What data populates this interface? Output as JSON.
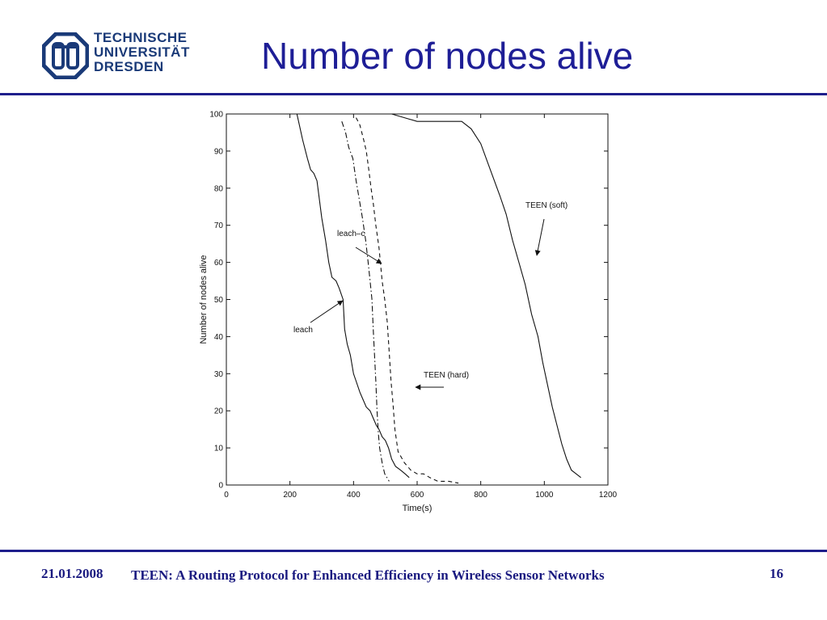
{
  "header": {
    "logo_lines": [
      "TECHNISCHE",
      "UNIVERSITÄT",
      "DRESDEN"
    ],
    "title": "Number of nodes alive"
  },
  "footer": {
    "date": "21.01.2008",
    "talk_title": "TEEN: A Routing Protocol for Enhanced Efficiency in Wireless Sensor Networks",
    "page_number": "16"
  },
  "colors": {
    "title": "#1e1e96",
    "rule": "#1e1e8c",
    "footer": "#1a1a80",
    "logo": "#1a3a78",
    "plot_ink": "#111111"
  },
  "chart_data": {
    "type": "line",
    "title": "",
    "xlabel": "Time(s)",
    "ylabel": "Number of nodes alive",
    "xlim": [
      0,
      1200
    ],
    "ylim": [
      0,
      100
    ],
    "xticks": [
      0,
      200,
      400,
      600,
      800,
      1000,
      1200
    ],
    "yticks": [
      0,
      10,
      20,
      30,
      40,
      50,
      60,
      70,
      80,
      90,
      100
    ],
    "grid": false,
    "legend": "none",
    "series": [
      {
        "name": "leach",
        "style": "solid",
        "points": [
          [
            222,
            100
          ],
          [
            240,
            93
          ],
          [
            255,
            88
          ],
          [
            265,
            85
          ],
          [
            275,
            84
          ],
          [
            285,
            82
          ],
          [
            300,
            72
          ],
          [
            312,
            66
          ],
          [
            322,
            60
          ],
          [
            332,
            56
          ],
          [
            345,
            55
          ],
          [
            355,
            53
          ],
          [
            367,
            50
          ],
          [
            372,
            42
          ],
          [
            380,
            38
          ],
          [
            390,
            35
          ],
          [
            400,
            30
          ],
          [
            408,
            28
          ],
          [
            420,
            25
          ],
          [
            430,
            23
          ],
          [
            440,
            21
          ],
          [
            452,
            20
          ],
          [
            462,
            18
          ],
          [
            472,
            16
          ],
          [
            480,
            15
          ],
          [
            490,
            13
          ],
          [
            500,
            12
          ],
          [
            510,
            10
          ],
          [
            520,
            7
          ],
          [
            532,
            5
          ],
          [
            548,
            4
          ],
          [
            562,
            3
          ],
          [
            575,
            2
          ]
        ]
      },
      {
        "name": "leach–c",
        "style": "dashdot",
        "points": [
          [
            363,
            98
          ],
          [
            375,
            95
          ],
          [
            385,
            91
          ],
          [
            398,
            88
          ],
          [
            408,
            82
          ],
          [
            418,
            77
          ],
          [
            428,
            72
          ],
          [
            438,
            66
          ],
          [
            446,
            60
          ],
          [
            452,
            55
          ],
          [
            458,
            50
          ],
          [
            462,
            42
          ],
          [
            466,
            35
          ],
          [
            470,
            28
          ],
          [
            474,
            20
          ],
          [
            478,
            14
          ],
          [
            482,
            10
          ],
          [
            490,
            6
          ],
          [
            498,
            3
          ],
          [
            512,
            1
          ]
        ]
      },
      {
        "name": "TEEN (hard)",
        "style": "dashed",
        "points": [
          [
            408,
            99
          ],
          [
            420,
            97
          ],
          [
            432,
            93
          ],
          [
            440,
            90
          ],
          [
            448,
            85
          ],
          [
            455,
            80
          ],
          [
            462,
            76
          ],
          [
            470,
            70
          ],
          [
            480,
            64
          ],
          [
            490,
            55
          ],
          [
            498,
            50
          ],
          [
            506,
            44
          ],
          [
            512,
            36
          ],
          [
            518,
            28
          ],
          [
            524,
            22
          ],
          [
            530,
            15
          ],
          [
            540,
            9
          ],
          [
            560,
            6
          ],
          [
            580,
            4
          ],
          [
            600,
            3
          ],
          [
            620,
            3
          ],
          [
            640,
            2
          ],
          [
            665,
            1
          ],
          [
            700,
            1
          ],
          [
            730,
            0.5
          ]
        ]
      },
      {
        "name": "TEEN (soft)",
        "style": "solid",
        "points": [
          [
            480,
            100
          ],
          [
            520,
            100
          ],
          [
            560,
            99
          ],
          [
            600,
            98
          ],
          [
            650,
            98
          ],
          [
            700,
            98
          ],
          [
            740,
            98
          ],
          [
            770,
            96
          ],
          [
            800,
            92
          ],
          [
            830,
            85
          ],
          [
            860,
            78
          ],
          [
            880,
            73
          ],
          [
            900,
            66
          ],
          [
            920,
            60
          ],
          [
            940,
            54
          ],
          [
            960,
            46
          ],
          [
            980,
            40
          ],
          [
            995,
            33
          ],
          [
            1010,
            27
          ],
          [
            1025,
            21
          ],
          [
            1040,
            16
          ],
          [
            1055,
            11
          ],
          [
            1070,
            7
          ],
          [
            1085,
            4
          ],
          [
            1100,
            3
          ],
          [
            1115,
            2
          ]
        ]
      }
    ],
    "annotations": [
      {
        "text": "TEEN (soft)",
        "series": "TEEN (soft)"
      },
      {
        "text": "leach–c",
        "series": "leach–c"
      },
      {
        "text": "leach",
        "series": "leach"
      },
      {
        "text": "TEEN (hard)",
        "series": "TEEN (hard)"
      }
    ]
  }
}
